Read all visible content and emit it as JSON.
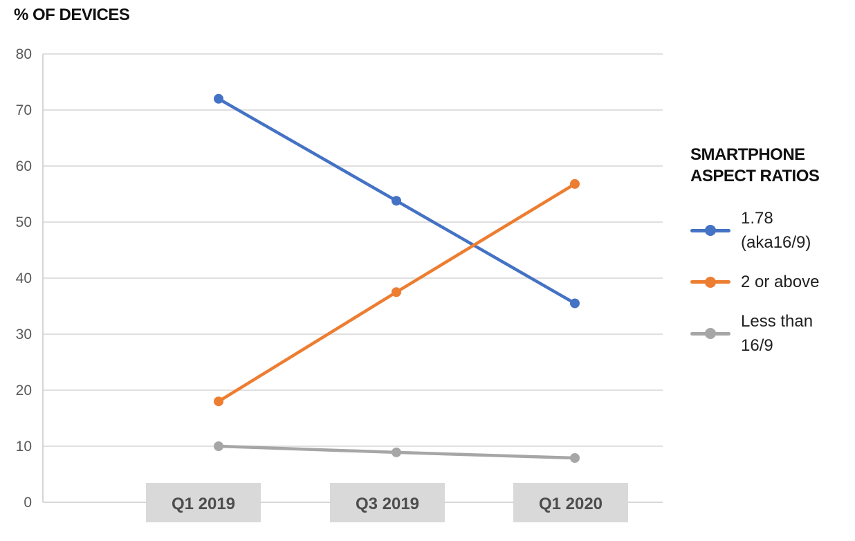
{
  "chart_data": {
    "type": "line",
    "title": "% OF DEVICES",
    "categories": [
      "Q1 2019",
      "Q3 2019",
      "Q1 2020"
    ],
    "series": [
      {
        "name": "1.78 (aka16/9)",
        "legend_label": "1.78\n(aka16/9)",
        "color": "#4472C4",
        "values": [
          72,
          53.8,
          35.5
        ]
      },
      {
        "name": "2 or above",
        "legend_label": "2 or above",
        "color": "#ED7D31",
        "values": [
          18,
          37.5,
          56.8
        ]
      },
      {
        "name": "Less than 16/9",
        "legend_label": "Less than\n16/9",
        "color": "#A6A6A6",
        "values": [
          10,
          8.9,
          7.9
        ]
      }
    ],
    "xlabel": "",
    "ylabel": "% OF DEVICES",
    "ylim": [
      0,
      80
    ],
    "yticks": [
      0,
      10,
      20,
      30,
      40,
      50,
      60,
      70,
      80
    ],
    "grid": true,
    "legend_title": "SMARTPHONE ASPECT RATIOS",
    "legend_title_display": "SMARTPHONE\nASPECT RATIOS",
    "legend_position": "right",
    "colors": {
      "grid": "#DBDBDB",
      "axis": "#D2D2D2",
      "tick_label": "#595959",
      "category_box_bg": "#D9D9D9",
      "category_label": "#4D4D4D",
      "title_text": "#111111",
      "legend_text": "#1F1F1F"
    }
  }
}
